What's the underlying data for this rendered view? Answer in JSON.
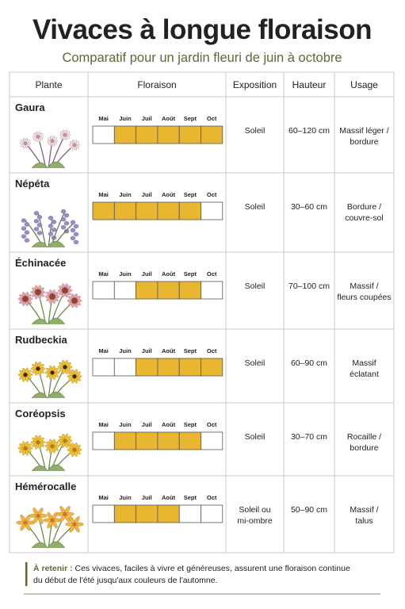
{
  "header": {
    "title": "Vivaces à longue floraison",
    "subtitle": "Comparatif pour un jardin fleuri de juin à octobre"
  },
  "table": {
    "columns": [
      "Plante",
      "Floraison",
      "Exposition",
      "Hauteur",
      "Usage"
    ],
    "months": [
      "Mai",
      "Juin",
      "Juil",
      "Août",
      "Sept",
      "Oct"
    ],
    "rows": [
      {
        "plant": "Gaura",
        "bloom": [
          false,
          true,
          true,
          true,
          true,
          true
        ],
        "exposure": [
          "Soleil"
        ],
        "height": "60–120 cm",
        "usage": [
          "Massif léger /",
          "bordure"
        ]
      },
      {
        "plant": "Népéta",
        "bloom": [
          true,
          true,
          true,
          true,
          true,
          false
        ],
        "exposure": [
          "Soleil"
        ],
        "height": "30–60 cm",
        "usage": [
          "Bordure /",
          "couvre-sol"
        ]
      },
      {
        "plant": "Échinacée",
        "bloom": [
          false,
          false,
          true,
          true,
          true,
          false
        ],
        "exposure": [
          "Soleil"
        ],
        "height": "70–100 cm",
        "usage": [
          "Massif /",
          "fleurs coupées"
        ]
      },
      {
        "plant": "Rudbeckia",
        "bloom": [
          false,
          false,
          true,
          true,
          true,
          true
        ],
        "exposure": [
          "Soleil"
        ],
        "height": "60–90 cm",
        "usage": [
          "Massif",
          "éclatant"
        ]
      },
      {
        "plant": "Coréopsis",
        "bloom": [
          false,
          true,
          true,
          true,
          true,
          false
        ],
        "exposure": [
          "Soleil"
        ],
        "height": "30–70 cm",
        "usage": [
          "Rocaille /",
          "bordure"
        ]
      },
      {
        "plant": "Hémérocalle",
        "bloom": [
          false,
          true,
          true,
          true,
          false,
          false
        ],
        "exposure": [
          "Soleil ou",
          "mi-ombre"
        ],
        "height": "50–90 cm",
        "usage": [
          "Massif /",
          "talus"
        ]
      }
    ]
  },
  "footer": {
    "label": "À retenir :",
    "lines": [
      " Ces vivaces, faciles à vivre et généreuses, assurent une floraison continue",
      "du début de l'été jusqu'aux couleurs de l'automne."
    ]
  }
}
